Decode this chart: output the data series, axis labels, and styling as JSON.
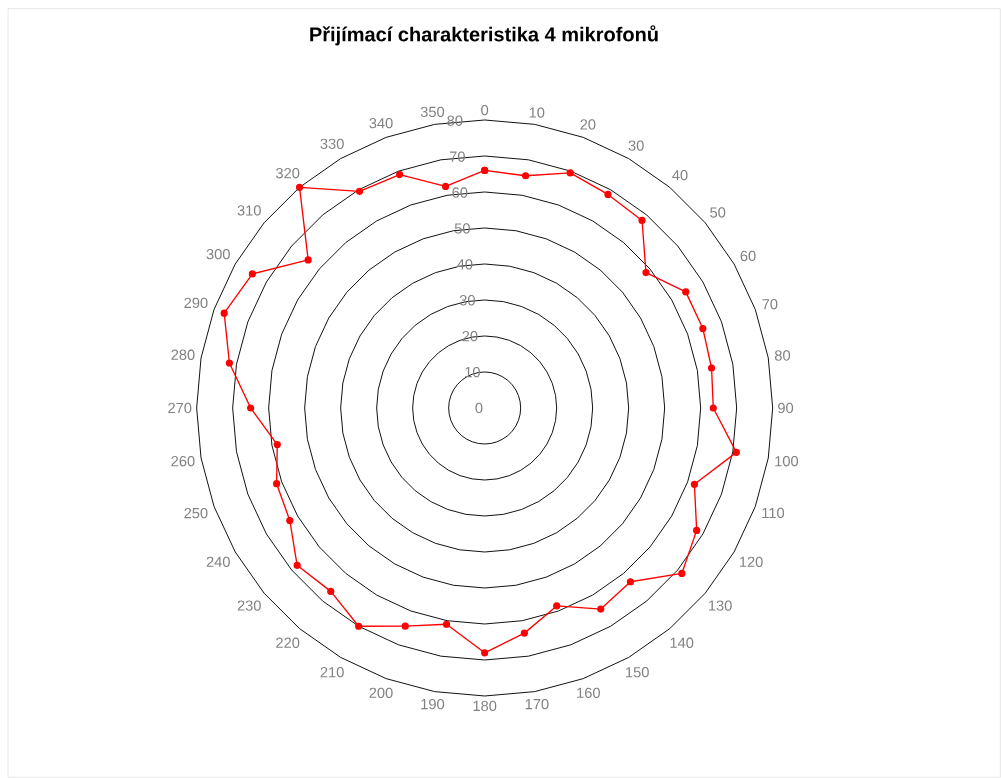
{
  "chart_data": {
    "type": "radar",
    "title": "Přijímací charakteristika 4 mikrofonů",
    "categories": [
      "0",
      "10",
      "20",
      "30",
      "40",
      "50",
      "60",
      "70",
      "80",
      "90",
      "100",
      "110",
      "120",
      "130",
      "140",
      "150",
      "160",
      "170",
      "180",
      "190",
      "200",
      "210",
      "220",
      "230",
      "240",
      "250",
      "260",
      "270",
      "280",
      "290",
      "300",
      "310",
      "320",
      "330",
      "340",
      "350"
    ],
    "series": [
      {
        "color": "#ff0000",
        "values": [
          66,
          65.5,
          69.5,
          68.5,
          68,
          58.5,
          64.5,
          64.5,
          64,
          63.5,
          71,
          62,
          68,
          71.5,
          63,
          64.5,
          58.5,
          63.5,
          68,
          61,
          64.5,
          70,
          66.5,
          68,
          62.5,
          61.5,
          58.5,
          65,
          72,
          77,
          74.5,
          64,
          80,
          69.5,
          69,
          62.5
        ]
      }
    ],
    "ylim": [
      0,
      80
    ],
    "yticks": [
      0,
      10,
      20,
      30,
      40,
      50,
      60,
      70,
      80
    ],
    "grid": true,
    "marker": "circle",
    "line_style": "solid"
  }
}
